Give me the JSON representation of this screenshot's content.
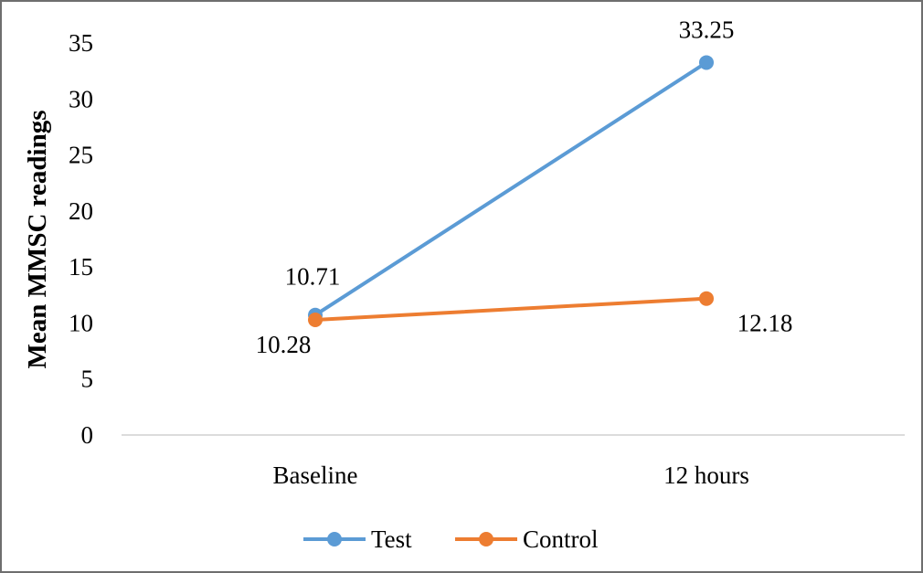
{
  "chart_data": {
    "type": "line",
    "title": "",
    "xlabel": "",
    "ylabel": "Mean MMSC readings",
    "categories": [
      "Baseline",
      "12 hours"
    ],
    "ylim": [
      0,
      35
    ],
    "yticks": [
      0,
      5,
      10,
      15,
      20,
      25,
      30,
      35
    ],
    "grid": false,
    "legend": "bottom",
    "series": [
      {
        "name": "Test",
        "values": [
          10.71,
          33.25
        ],
        "labels": [
          "10.71",
          "33.25"
        ],
        "color": "#5b9bd5"
      },
      {
        "name": "Control",
        "values": [
          10.28,
          12.18
        ],
        "labels": [
          "10.28",
          "12.18"
        ],
        "color": "#ed7d31"
      }
    ]
  }
}
